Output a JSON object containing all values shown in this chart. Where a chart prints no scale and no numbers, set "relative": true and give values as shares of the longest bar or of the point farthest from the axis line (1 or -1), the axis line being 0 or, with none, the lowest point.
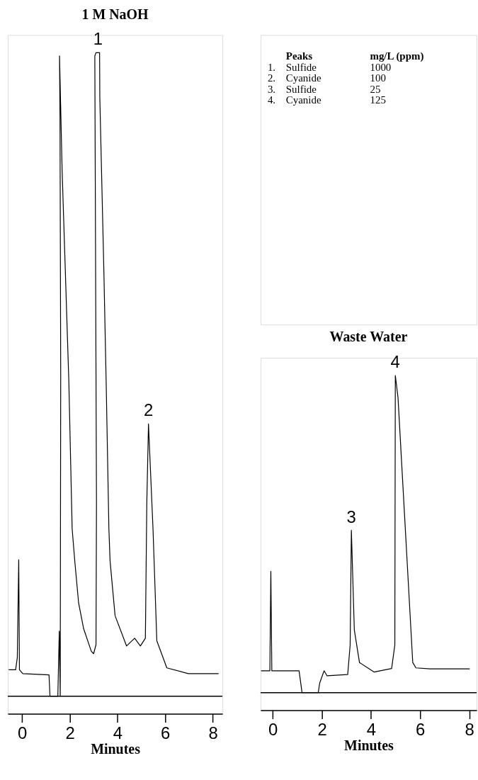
{
  "chart_data": [
    {
      "type": "line",
      "title": "1 M NaOH",
      "xlabel": "Minutes",
      "relative": true,
      "color": "#000000",
      "xlim": [
        -0.6,
        8.4
      ],
      "xticks": [
        0,
        2,
        4,
        6,
        8
      ],
      "grid": false,
      "x": [
        -0.56,
        -0.27,
        -0.2,
        -0.14,
        -0.11,
        0.03,
        1.13,
        1.17,
        1.5,
        1.56,
        1.6,
        1.62,
        1.59,
        1.57,
        1.68,
        1.96,
        2.1,
        2.21,
        2.37,
        2.58,
        2.9,
        3.0,
        3.1,
        3.12,
        3.08,
        3.05,
        3.1,
        3.25,
        3.26,
        3.43,
        3.53,
        3.64,
        3.69,
        3.9,
        4.38,
        4.72,
        4.96,
        5.17,
        5.23,
        5.3,
        5.49,
        5.65,
        6.07,
        6.97,
        8.24
      ],
      "values": [
        0.041,
        0.041,
        0.06,
        0.212,
        0.041,
        0.035,
        0.033,
        0,
        0,
        0.101,
        0,
        0.5,
        0.9,
        0.995,
        0.816,
        0.49,
        0.26,
        0.21,
        0.145,
        0.105,
        0.07,
        0.066,
        0.08,
        0.3,
        0.7,
        0.995,
        1.0,
        1.0,
        0.93,
        0.66,
        0.48,
        0.26,
        0.21,
        0.125,
        0.078,
        0.09,
        0.078,
        0.09,
        0.3,
        0.423,
        0.26,
        0.086,
        0.044,
        0.035,
        0.035
      ],
      "annotations": [
        {
          "text": "1",
          "x": 3.18,
          "y": 1.0
        },
        {
          "text": "2",
          "x": 5.3,
          "y": 0.423
        },
        "Peaks",
        "mg/L (ppm)",
        "1.",
        "Sulfide",
        "1000",
        "2.",
        "Cyanide",
        "100",
        "3.",
        "Sulfide",
        "25",
        "4.",
        "Cyanide",
        "125"
      ]
    },
    {
      "type": "line",
      "title": "Waste Water",
      "xlabel": "Minutes",
      "relative": true,
      "color": "#000000",
      "xlim": [
        -0.5,
        8.3
      ],
      "xticks": [
        0,
        2,
        4,
        6,
        8
      ],
      "grid": false,
      "x": [
        -0.48,
        -0.12,
        -0.08,
        -0.04,
        1.07,
        1.19,
        1.85,
        1.91,
        1.99,
        2.09,
        2.21,
        3.05,
        3.15,
        3.2,
        3.32,
        3.53,
        4.12,
        4.84,
        4.97,
        4.99,
        5.1,
        5.7,
        5.83,
        6.41,
        8.02
      ],
      "values": [
        0.069,
        0.069,
        0.383,
        0.069,
        0.069,
        0,
        0,
        0.03,
        0.048,
        0.069,
        0.053,
        0.057,
        0.15,
        0.512,
        0.198,
        0.095,
        0.065,
        0.076,
        0.15,
        1.0,
        0.93,
        0.095,
        0.078,
        0.075,
        0.075
      ],
      "annotations": [
        {
          "text": "3",
          "x": 3.2,
          "y": 0.512
        },
        {
          "text": "4",
          "x": 4.99,
          "y": 1.0
        }
      ]
    }
  ]
}
